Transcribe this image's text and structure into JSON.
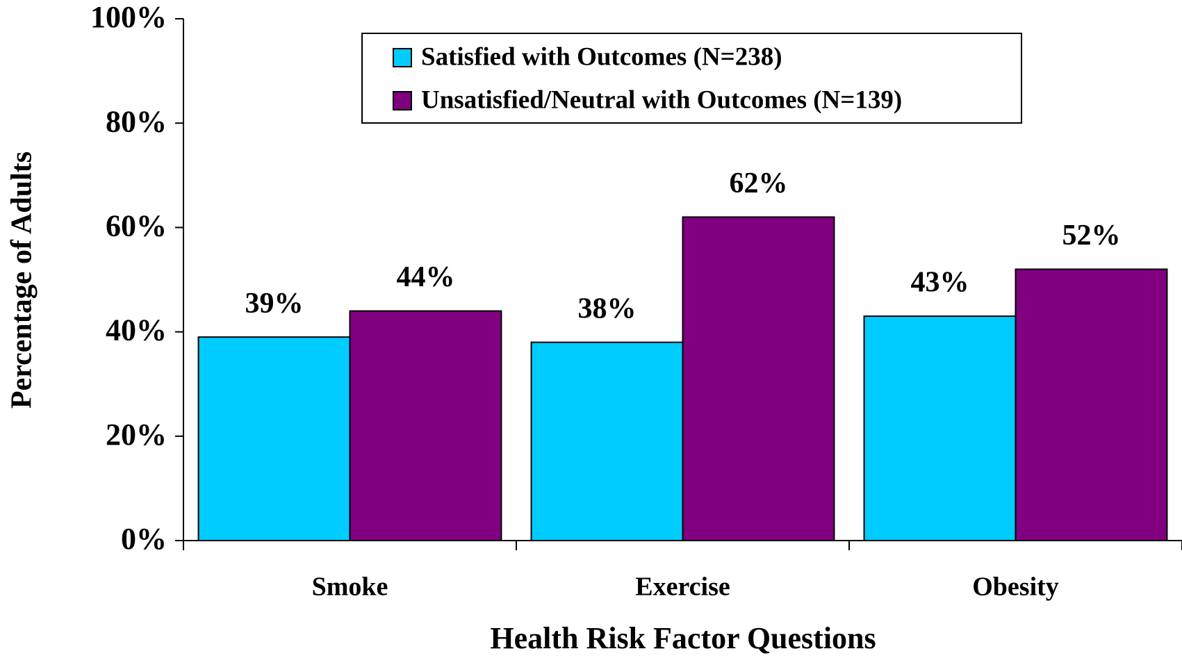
{
  "chart_data": {
    "type": "bar",
    "x_label": "Health Risk Factor Questions",
    "y_label": "Percentage of Adults",
    "categories": [
      "Smoke",
      "Exercise",
      "Obesity"
    ],
    "series": [
      {
        "name": "Satisfied with Outcomes (N=238)",
        "color": "#00ccff",
        "values": [
          39,
          38,
          43
        ],
        "value_labels": [
          "39%",
          "38%",
          "43%"
        ]
      },
      {
        "name": "Unsatisfied/Neutral with Outcomes (N=139)",
        "color": "#800080",
        "values": [
          44,
          62,
          52
        ],
        "value_labels": [
          "44%",
          "62%",
          "52%"
        ]
      }
    ],
    "ylim": [
      0,
      100
    ],
    "yticks": [
      {
        "value": 0,
        "label": "0%"
      },
      {
        "value": 20,
        "label": "20%"
      },
      {
        "value": 40,
        "label": "40%"
      },
      {
        "value": 60,
        "label": "60%"
      },
      {
        "value": 80,
        "label": "80%"
      },
      {
        "value": 100,
        "label": "100%"
      }
    ],
    "legend": "top"
  }
}
